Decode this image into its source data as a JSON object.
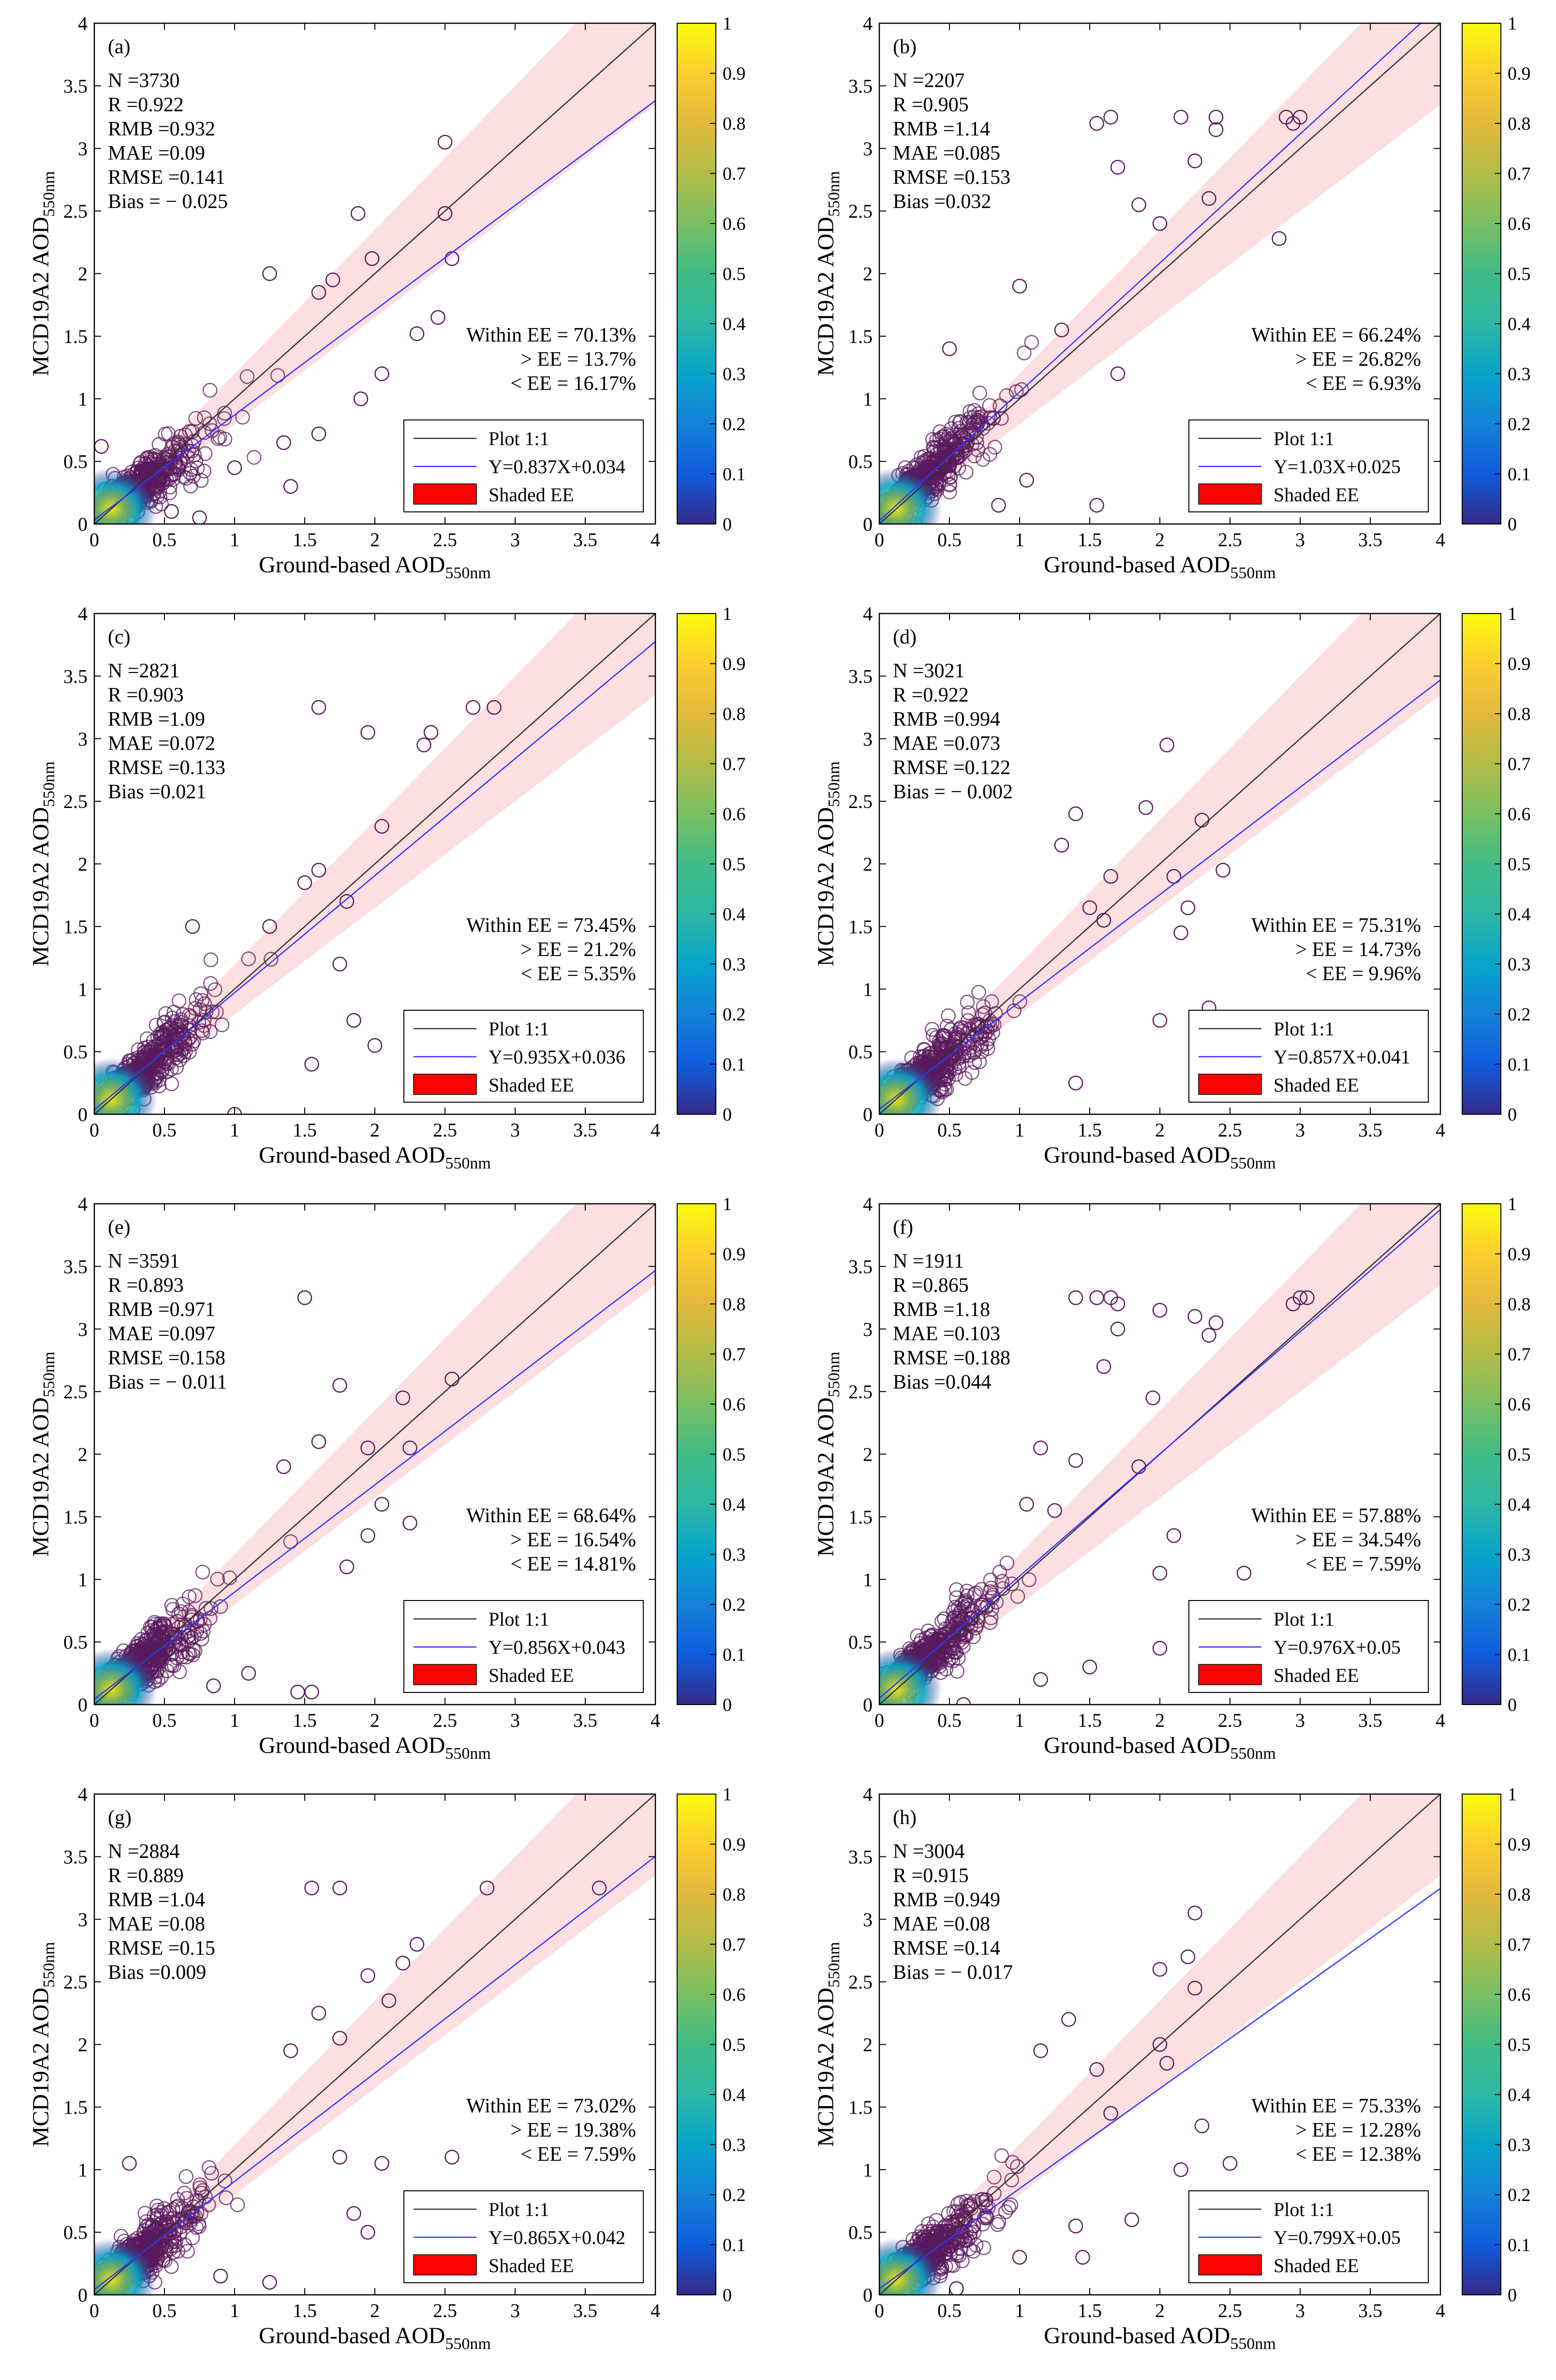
{
  "figure": {
    "xlabel_main": "Ground-based AOD",
    "xlabel_sub": "550nm",
    "ylabel_main": "MCD19A2 AOD",
    "ylabel_sub": "550nm",
    "colorbar_ticks": [
      "0",
      "0.1",
      "0.2",
      "0.3",
      "0.4",
      "0.5",
      "0.6",
      "0.7",
      "0.8",
      "0.9",
      "1"
    ],
    "legend": {
      "one_to_one": "Plot 1:1",
      "shaded": "Shaded EE"
    },
    "colors": {
      "one_to_one": "#333333",
      "fit": "#3333ff",
      "ee_shade": "#fbd9da",
      "marker": "#5a1a5e",
      "legend_patch": "#ff0000"
    }
  },
  "chart_data": [
    {
      "type": "scatter",
      "label": "(a)",
      "xlim": [
        0,
        4
      ],
      "ylim": [
        0,
        4
      ],
      "x_ticks": [
        0,
        0.5,
        1,
        1.5,
        2,
        2.5,
        3,
        3.5,
        4
      ],
      "y_ticks": [
        0,
        0.5,
        1,
        1.5,
        2,
        2.5,
        3,
        3.5,
        4
      ],
      "stats": [
        "N =3730",
        "R =0.922",
        "RMB =0.932",
        "MAE =0.09",
        "RMSE =0.141",
        "Bias = − 0.025"
      ],
      "ee": [
        "Within EE = 70.13%",
        "> EE = 13.7%",
        "< EE = 16.17%"
      ],
      "fit": {
        "slope": 0.837,
        "intercept": 0.034,
        "label": "Y=0.837X+0.034"
      },
      "outliers": [
        [
          2.5,
          3.05
        ],
        [
          1.88,
          2.48
        ],
        [
          2.5,
          2.48
        ],
        [
          2.55,
          2.12
        ],
        [
          1.98,
          2.12
        ],
        [
          1.25,
          2.0
        ],
        [
          1.7,
          1.95
        ],
        [
          1.6,
          1.85
        ],
        [
          2.45,
          1.65
        ],
        [
          2.3,
          1.52
        ],
        [
          2.05,
          1.2
        ],
        [
          1.9,
          1.0
        ],
        [
          1.6,
          0.72
        ],
        [
          1.35,
          0.65
        ],
        [
          1.0,
          0.45
        ],
        [
          0.05,
          0.62
        ],
        [
          1.4,
          0.3
        ],
        [
          0.75,
          0.05
        ],
        [
          0.55,
          0.1
        ]
      ]
    },
    {
      "type": "scatter",
      "label": "(b)",
      "xlim": [
        0,
        4
      ],
      "ylim": [
        0,
        4
      ],
      "x_ticks": [
        0,
        0.5,
        1,
        1.5,
        2,
        2.5,
        3,
        3.5,
        4
      ],
      "y_ticks": [
        0,
        0.5,
        1,
        1.5,
        2,
        2.5,
        3,
        3.5,
        4
      ],
      "stats": [
        "N =2207",
        "R =0.905",
        "RMB =1.14",
        "MAE =0.085",
        "RMSE =0.153",
        "Bias =0.032"
      ],
      "ee": [
        "Within EE = 66.24%",
        "> EE = 26.82%",
        "< EE = 6.93%"
      ],
      "fit": {
        "slope": 1.03,
        "intercept": 0.025,
        "label": "Y=1.03X+0.025"
      },
      "outliers": [
        [
          1.65,
          3.25
        ],
        [
          1.55,
          3.2
        ],
        [
          2.15,
          3.25
        ],
        [
          2.4,
          3.25
        ],
        [
          2.95,
          3.2
        ],
        [
          2.9,
          3.25
        ],
        [
          3.0,
          3.25
        ],
        [
          2.4,
          3.15
        ],
        [
          2.25,
          2.9
        ],
        [
          1.7,
          2.85
        ],
        [
          1.85,
          2.55
        ],
        [
          2.0,
          2.4
        ],
        [
          2.35,
          2.6
        ],
        [
          2.85,
          2.28
        ],
        [
          1.0,
          1.9
        ],
        [
          1.3,
          1.55
        ],
        [
          1.7,
          1.2
        ],
        [
          1.55,
          0.15
        ],
        [
          0.5,
          1.4
        ],
        [
          1.05,
          0.35
        ],
        [
          0.85,
          0.15
        ]
      ]
    },
    {
      "type": "scatter",
      "label": "(c)",
      "xlim": [
        0,
        4
      ],
      "ylim": [
        0,
        4
      ],
      "x_ticks": [
        0,
        0.5,
        1,
        1.5,
        2,
        2.5,
        3,
        3.5,
        4
      ],
      "y_ticks": [
        0,
        0.5,
        1,
        1.5,
        2,
        2.5,
        3,
        3.5,
        4
      ],
      "stats": [
        "N =2821",
        "R =0.903",
        "RMB =1.09",
        "MAE =0.072",
        "RMSE =0.133",
        "Bias =0.021"
      ],
      "ee": [
        "Within EE = 73.45%",
        "> EE = 21.2%",
        "< EE = 5.35%"
      ],
      "fit": {
        "slope": 0.935,
        "intercept": 0.036,
        "label": "Y=0.935X+0.036"
      },
      "outliers": [
        [
          1.6,
          3.25
        ],
        [
          2.7,
          3.25
        ],
        [
          2.85,
          3.25
        ],
        [
          2.4,
          3.05
        ],
        [
          1.95,
          3.05
        ],
        [
          2.35,
          2.95
        ],
        [
          2.05,
          2.3
        ],
        [
          1.6,
          1.95
        ],
        [
          1.5,
          1.85
        ],
        [
          1.8,
          1.7
        ],
        [
          1.25,
          1.5
        ],
        [
          1.75,
          1.2
        ],
        [
          1.85,
          0.75
        ],
        [
          1.55,
          0.4
        ],
        [
          2.0,
          0.55
        ],
        [
          1.0,
          0.0
        ],
        [
          0.7,
          1.5
        ]
      ]
    },
    {
      "type": "scatter",
      "label": "(d)",
      "xlim": [
        0,
        4
      ],
      "ylim": [
        0,
        4
      ],
      "x_ticks": [
        0,
        0.5,
        1,
        1.5,
        2,
        2.5,
        3,
        3.5,
        4
      ],
      "y_ticks": [
        0,
        0.5,
        1,
        1.5,
        2,
        2.5,
        3,
        3.5,
        4
      ],
      "stats": [
        "N =3021",
        "R =0.922",
        "RMB =0.994",
        "MAE =0.073",
        "RMSE =0.122",
        "Bias = − 0.002"
      ],
      "ee": [
        "Within EE = 75.31%",
        "> EE = 14.73%",
        "< EE = 9.96%"
      ],
      "fit": {
        "slope": 0.857,
        "intercept": 0.041,
        "label": "Y=0.857X+0.041"
      },
      "outliers": [
        [
          2.05,
          2.95
        ],
        [
          1.4,
          2.4
        ],
        [
          1.9,
          2.45
        ],
        [
          2.3,
          2.35
        ],
        [
          1.3,
          2.15
        ],
        [
          1.65,
          1.9
        ],
        [
          2.1,
          1.9
        ],
        [
          2.45,
          1.95
        ],
        [
          1.5,
          1.65
        ],
        [
          1.6,
          1.55
        ],
        [
          2.2,
          1.65
        ],
        [
          2.15,
          1.45
        ],
        [
          2.35,
          0.85
        ],
        [
          1.4,
          0.25
        ],
        [
          2.0,
          0.75
        ]
      ]
    },
    {
      "type": "scatter",
      "label": "(e)",
      "xlim": [
        0,
        4
      ],
      "ylim": [
        0,
        4
      ],
      "x_ticks": [
        0,
        0.5,
        1,
        1.5,
        2,
        2.5,
        3,
        3.5,
        4
      ],
      "y_ticks": [
        0,
        0.5,
        1,
        1.5,
        2,
        2.5,
        3,
        3.5,
        4
      ],
      "stats": [
        "N =3591",
        "R =0.893",
        "RMB =0.971",
        "MAE =0.097",
        "RMSE =0.158",
        "Bias = − 0.011"
      ],
      "ee": [
        "Within EE = 68.64%",
        "> EE = 16.54%",
        "< EE = 14.81%"
      ],
      "fit": {
        "slope": 0.856,
        "intercept": 0.043,
        "label": "Y=0.856X+0.043"
      },
      "outliers": [
        [
          1.5,
          3.25
        ],
        [
          2.55,
          2.6
        ],
        [
          1.75,
          2.55
        ],
        [
          2.2,
          2.45
        ],
        [
          1.95,
          2.05
        ],
        [
          2.25,
          2.05
        ],
        [
          1.6,
          2.1
        ],
        [
          1.35,
          1.9
        ],
        [
          2.05,
          1.6
        ],
        [
          2.25,
          1.45
        ],
        [
          1.95,
          1.35
        ],
        [
          1.8,
          1.1
        ],
        [
          1.55,
          0.1
        ],
        [
          1.45,
          0.1
        ],
        [
          1.1,
          0.25
        ],
        [
          0.85,
          0.15
        ]
      ]
    },
    {
      "type": "scatter",
      "label": "(f)",
      "xlim": [
        0,
        4
      ],
      "ylim": [
        0,
        4
      ],
      "x_ticks": [
        0,
        0.5,
        1,
        1.5,
        2,
        2.5,
        3,
        3.5,
        4
      ],
      "y_ticks": [
        0,
        0.5,
        1,
        1.5,
        2,
        2.5,
        3,
        3.5,
        4
      ],
      "stats": [
        "N =1911",
        "R =0.865",
        "RMB =1.18",
        "MAE =0.103",
        "RMSE =0.188",
        "Bias =0.044"
      ],
      "ee": [
        "Within EE = 57.88%",
        "> EE = 34.54%",
        "< EE = 7.59%"
      ],
      "fit": {
        "slope": 0.976,
        "intercept": 0.05,
        "label": "Y=0.976X+0.05"
      },
      "outliers": [
        [
          1.4,
          3.25
        ],
        [
          1.55,
          3.25
        ],
        [
          1.65,
          3.25
        ],
        [
          1.7,
          3.2
        ],
        [
          2.0,
          3.15
        ],
        [
          2.95,
          3.2
        ],
        [
          3.05,
          3.25
        ],
        [
          3.0,
          3.25
        ],
        [
          2.25,
          3.1
        ],
        [
          2.4,
          3.05
        ],
        [
          1.7,
          3.0
        ],
        [
          1.6,
          2.7
        ],
        [
          1.95,
          2.45
        ],
        [
          2.35,
          2.95
        ],
        [
          1.15,
          2.05
        ],
        [
          1.05,
          1.6
        ],
        [
          1.25,
          1.55
        ],
        [
          1.4,
          1.95
        ],
        [
          2.1,
          1.35
        ],
        [
          2.0,
          1.05
        ],
        [
          2.6,
          1.05
        ],
        [
          2.0,
          0.45
        ],
        [
          1.15,
          0.2
        ],
        [
          1.5,
          0.3
        ],
        [
          2.4,
          0.25
        ],
        [
          0.6,
          0.0
        ],
        [
          1.85,
          1.9
        ]
      ]
    },
    {
      "type": "scatter",
      "label": "(g)",
      "xlim": [
        0,
        4
      ],
      "ylim": [
        0,
        4
      ],
      "x_ticks": [
        0,
        0.5,
        1,
        1.5,
        2,
        2.5,
        3,
        3.5,
        4
      ],
      "y_ticks": [
        0,
        0.5,
        1,
        1.5,
        2,
        2.5,
        3,
        3.5,
        4
      ],
      "stats": [
        "N =2884",
        "R =0.889",
        "RMB =1.04",
        "MAE =0.08",
        "RMSE =0.15",
        "Bias =0.009"
      ],
      "ee": [
        "Within EE = 73.02%",
        "> EE = 19.38%",
        "< EE = 7.59%"
      ],
      "fit": {
        "slope": 0.865,
        "intercept": 0.042,
        "label": "Y=0.865X+0.042"
      },
      "outliers": [
        [
          1.55,
          3.25
        ],
        [
          1.75,
          3.25
        ],
        [
          2.8,
          3.25
        ],
        [
          3.6,
          3.25
        ],
        [
          2.3,
          2.8
        ],
        [
          2.2,
          2.65
        ],
        [
          1.95,
          2.55
        ],
        [
          2.1,
          2.35
        ],
        [
          1.6,
          2.25
        ],
        [
          1.75,
          2.05
        ],
        [
          1.4,
          1.95
        ],
        [
          2.55,
          1.1
        ],
        [
          2.05,
          1.05
        ],
        [
          1.75,
          1.1
        ],
        [
          1.85,
          0.65
        ],
        [
          1.95,
          0.5
        ],
        [
          1.25,
          0.1
        ],
        [
          0.9,
          0.15
        ],
        [
          0.25,
          1.05
        ]
      ]
    },
    {
      "type": "scatter",
      "label": "(h)",
      "xlim": [
        0,
        4
      ],
      "ylim": [
        0,
        4
      ],
      "x_ticks": [
        0,
        0.5,
        1,
        1.5,
        2,
        2.5,
        3,
        3.5,
        4
      ],
      "y_ticks": [
        0,
        0.5,
        1,
        1.5,
        2,
        2.5,
        3,
        3.5,
        4
      ],
      "stats": [
        "N =3004",
        "R =0.915",
        "RMB =0.949",
        "MAE =0.08",
        "RMSE =0.14",
        "Bias = − 0.017"
      ],
      "ee": [
        "Within EE = 75.33%",
        "> EE = 12.28%",
        "< EE = 12.38%"
      ],
      "fit": {
        "slope": 0.799,
        "intercept": 0.05,
        "label": "Y=0.799X+0.05"
      },
      "outliers": [
        [
          2.25,
          3.05
        ],
        [
          2.0,
          2.6
        ],
        [
          2.2,
          2.7
        ],
        [
          2.25,
          2.45
        ],
        [
          1.35,
          2.2
        ],
        [
          1.15,
          1.95
        ],
        [
          2.0,
          2.0
        ],
        [
          2.05,
          1.85
        ],
        [
          1.55,
          1.8
        ],
        [
          1.65,
          1.45
        ],
        [
          2.5,
          1.05
        ],
        [
          2.3,
          1.35
        ],
        [
          2.15,
          1.0
        ],
        [
          1.4,
          0.55
        ],
        [
          1.8,
          0.6
        ],
        [
          0.55,
          0.05
        ],
        [
          1.0,
          0.3
        ],
        [
          1.45,
          0.3
        ]
      ]
    }
  ]
}
